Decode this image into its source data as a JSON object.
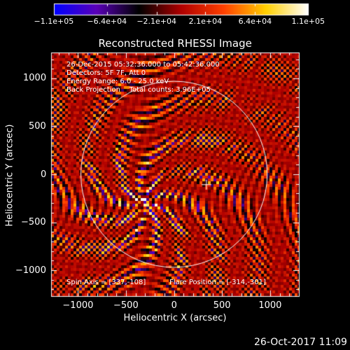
{
  "chart_data": {
    "type": "heatmap",
    "title": "Reconstructed RHESSI Image",
    "xlabel": "Heliocentric X (arcsec)",
    "ylabel": "Heliocentric Y (arcsec)",
    "xlim": [
      -1280,
      1300
    ],
    "ylim": [
      -1270,
      1270
    ],
    "x_ticks": [
      -1000,
      -500,
      0,
      500,
      1000
    ],
    "x_tick_labels": [
      "−1000",
      "−500",
      "0",
      "500",
      "1000"
    ],
    "y_ticks": [
      1000,
      500,
      0,
      -500,
      -1000
    ],
    "y_tick_labels": [
      "1000",
      "500",
      "0",
      "−500",
      "−1000"
    ],
    "colorbar": {
      "range": [
        -110000,
        110000
      ],
      "tick_values": [
        -110000,
        -64000,
        -21000,
        21000,
        64000,
        110000
      ],
      "tick_labels": [
        "−1.1e+05",
        "−6.4e+04",
        "−2.1e+04",
        "2.1e+04",
        "6.4e+04",
        "1.1e+05"
      ],
      "colors": [
        "#0000ff",
        "#5a00b8",
        "#000000",
        "#b00000",
        "#ff4000",
        "#ffd000",
        "#ffffff"
      ]
    },
    "annotations": [
      "26-Dec-2015 05:32:36.000 to 05:42:36.000",
      "Detectors: 5F 7F, Att 0",
      "Energy Range: 6.0 - 25.0 keV",
      "Back Projection    Total counts: 3.96E+05"
    ],
    "footer_left": "Spin Axis = [337,-108]",
    "footer_right": "Flare Position = [-314,-301]",
    "spin_axis": [
      337,
      -108
    ],
    "flare_position": [
      -314,
      -301
    ],
    "solar_limb_radius_arcsec": 970,
    "plus_marker": [
      337,
      -108
    ],
    "timestamp": "26-Oct-2017 11:09"
  },
  "colors": {
    "background": "#000000",
    "foreground": "#ffffff"
  }
}
